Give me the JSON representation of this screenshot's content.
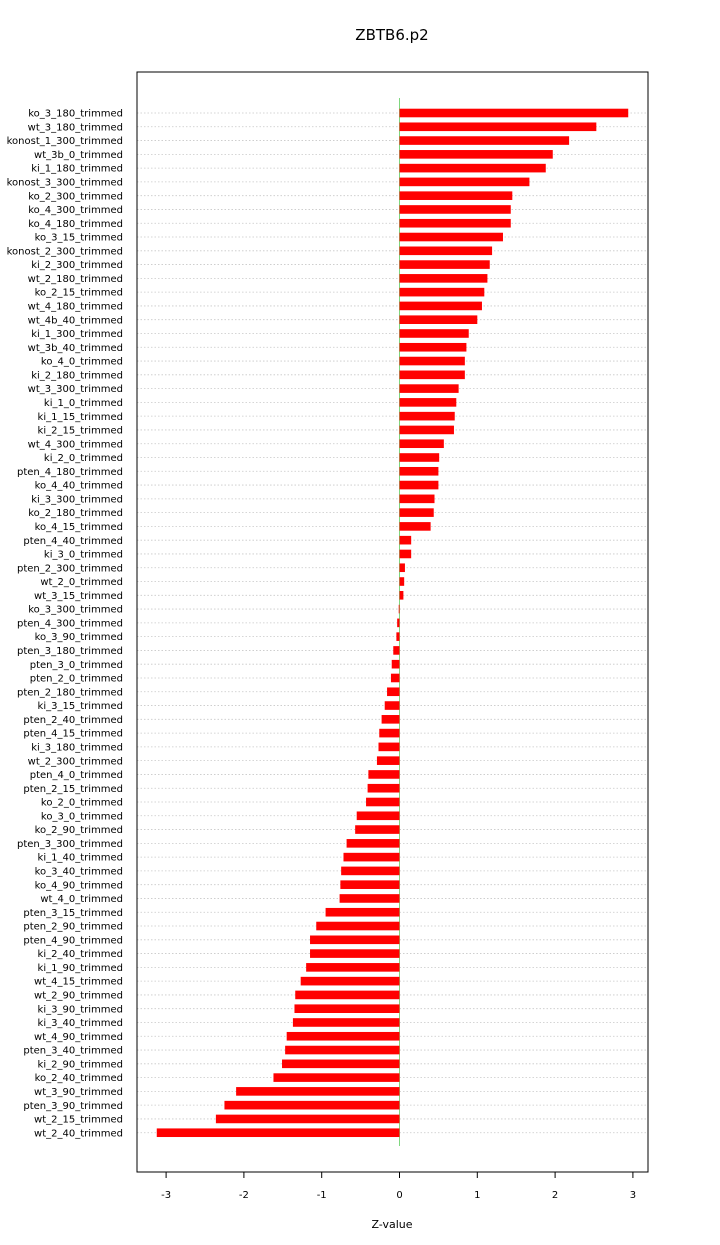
{
  "chart_data": {
    "type": "bar",
    "orientation": "horizontal",
    "title": "ZBTB6.p2",
    "xlabel": "Z-value",
    "ylabel": "",
    "xlim": [
      -3.2,
      3.2
    ],
    "xticks": [
      -3,
      -2,
      -1,
      0,
      1,
      2,
      3
    ],
    "xtick_labels": [
      "-3",
      "-2",
      "-1",
      "0",
      "1",
      "2",
      "3"
    ],
    "grid": "horizontal dotted",
    "bar_color": "#ff0000",
    "zero_line_color": "#7fd77f",
    "categories": [
      "ko_3_180_trimmed",
      "wt_3_180_trimmed",
      "konost_1_300_trimmed",
      "wt_3b_0_trimmed",
      "ki_1_180_trimmed",
      "konost_3_300_trimmed",
      "ko_2_300_trimmed",
      "ko_4_300_trimmed",
      "ko_4_180_trimmed",
      "ko_3_15_trimmed",
      "konost_2_300_trimmed",
      "ki_2_300_trimmed",
      "wt_2_180_trimmed",
      "ko_2_15_trimmed",
      "wt_4_180_trimmed",
      "wt_4b_40_trimmed",
      "ki_1_300_trimmed",
      "wt_3b_40_trimmed",
      "ko_4_0_trimmed",
      "ki_2_180_trimmed",
      "wt_3_300_trimmed",
      "ki_1_0_trimmed",
      "ki_1_15_trimmed",
      "ki_2_15_trimmed",
      "wt_4_300_trimmed",
      "ki_2_0_trimmed",
      "pten_4_180_trimmed",
      "ko_4_40_trimmed",
      "ki_3_300_trimmed",
      "ko_2_180_trimmed",
      "ko_4_15_trimmed",
      "pten_4_40_trimmed",
      "ki_3_0_trimmed",
      "pten_2_300_trimmed",
      "wt_2_0_trimmed",
      "wt_3_15_trimmed",
      "ko_3_300_trimmed",
      "pten_4_300_trimmed",
      "ko_3_90_trimmed",
      "pten_3_180_trimmed",
      "pten_3_0_trimmed",
      "pten_2_0_trimmed",
      "pten_2_180_trimmed",
      "ki_3_15_trimmed",
      "pten_2_40_trimmed",
      "pten_4_15_trimmed",
      "ki_3_180_trimmed",
      "wt_2_300_trimmed",
      "pten_4_0_trimmed",
      "pten_2_15_trimmed",
      "ko_2_0_trimmed",
      "ko_3_0_trimmed",
      "ko_2_90_trimmed",
      "pten_3_300_trimmed",
      "ki_1_40_trimmed",
      "ko_3_40_trimmed",
      "ko_4_90_trimmed",
      "wt_4_0_trimmed",
      "pten_3_15_trimmed",
      "pten_2_90_trimmed",
      "pten_4_90_trimmed",
      "ki_2_40_trimmed",
      "ki_1_90_trimmed",
      "wt_4_15_trimmed",
      "wt_2_90_trimmed",
      "ki_3_90_trimmed",
      "ki_3_40_trimmed",
      "wt_4_90_trimmed",
      "pten_3_40_trimmed",
      "ki_2_90_trimmed",
      "ko_2_40_trimmed",
      "wt_3_90_trimmed",
      "pten_3_90_trimmed",
      "wt_2_15_trimmed",
      "wt_2_40_trimmed"
    ],
    "values": [
      2.94,
      2.53,
      2.18,
      1.97,
      1.88,
      1.67,
      1.45,
      1.43,
      1.43,
      1.33,
      1.19,
      1.16,
      1.13,
      1.09,
      1.06,
      1.0,
      0.89,
      0.86,
      0.84,
      0.84,
      0.76,
      0.73,
      0.71,
      0.7,
      0.57,
      0.51,
      0.5,
      0.5,
      0.45,
      0.44,
      0.4,
      0.15,
      0.15,
      0.07,
      0.06,
      0.05,
      -0.01,
      -0.03,
      -0.04,
      -0.08,
      -0.1,
      -0.11,
      -0.16,
      -0.19,
      -0.23,
      -0.26,
      -0.27,
      -0.29,
      -0.4,
      -0.41,
      -0.43,
      -0.55,
      -0.57,
      -0.68,
      -0.72,
      -0.75,
      -0.76,
      -0.77,
      -0.95,
      -1.07,
      -1.15,
      -1.15,
      -1.2,
      -1.27,
      -1.34,
      -1.35,
      -1.37,
      -1.45,
      -1.47,
      -1.51,
      -1.62,
      -2.1,
      -2.25,
      -2.36,
      -3.12
    ]
  }
}
